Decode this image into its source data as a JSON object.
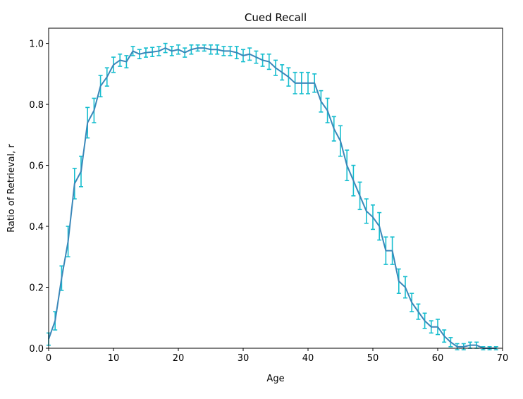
{
  "chart_data": {
    "type": "line",
    "title": "Cued Recall",
    "xlabel": "Age",
    "ylabel": "Ratio of Retrieval, r",
    "xlim": [
      0,
      70
    ],
    "ylim": [
      0,
      1.05
    ],
    "xticks": [
      0,
      10,
      20,
      30,
      40,
      50,
      60,
      70
    ],
    "yticks": [
      0.0,
      0.2,
      0.4,
      0.6,
      0.8,
      1.0
    ],
    "xtick_labels": [
      "0",
      "10",
      "20",
      "30",
      "40",
      "50",
      "60",
      "70"
    ],
    "ytick_labels": [
      "0.0",
      "0.2",
      "0.4",
      "0.6",
      "0.8",
      "1.0"
    ],
    "grid": false,
    "colors": {
      "line": "#3a87b9",
      "errorbar": "#17becf",
      "axes": "#000000"
    },
    "series": [
      {
        "x": [
          0,
          1,
          2,
          3,
          4,
          5,
          6,
          7,
          8,
          9,
          10,
          11,
          12,
          13,
          14,
          15,
          16,
          17,
          18,
          19,
          20,
          21,
          22,
          23,
          24,
          25,
          26,
          27,
          28,
          29,
          30,
          31,
          32,
          33,
          34,
          35,
          36,
          37,
          38,
          39,
          40,
          41,
          42,
          43,
          44,
          45,
          46,
          47,
          48,
          49,
          50,
          51,
          52,
          53,
          54,
          55,
          56,
          57,
          58,
          59,
          60,
          61,
          62,
          63,
          64,
          65,
          66,
          67,
          68,
          69
        ],
        "y": [
          0.03,
          0.09,
          0.23,
          0.35,
          0.54,
          0.58,
          0.74,
          0.78,
          0.86,
          0.89,
          0.93,
          0.945,
          0.94,
          0.975,
          0.965,
          0.97,
          0.972,
          0.975,
          0.985,
          0.975,
          0.98,
          0.97,
          0.98,
          0.985,
          0.985,
          0.98,
          0.98,
          0.975,
          0.975,
          0.97,
          0.96,
          0.965,
          0.955,
          0.945,
          0.94,
          0.92,
          0.905,
          0.89,
          0.87,
          0.87,
          0.87,
          0.87,
          0.81,
          0.78,
          0.72,
          0.68,
          0.6,
          0.55,
          0.5,
          0.45,
          0.43,
          0.4,
          0.32,
          0.32,
          0.22,
          0.2,
          0.15,
          0.12,
          0.09,
          0.07,
          0.07,
          0.04,
          0.02,
          0.005,
          0.005,
          0.01,
          0.01,
          0.0,
          0.0,
          0.0
        ],
        "err": [
          0.02,
          0.03,
          0.04,
          0.05,
          0.05,
          0.05,
          0.05,
          0.04,
          0.035,
          0.03,
          0.025,
          0.02,
          0.02,
          0.015,
          0.015,
          0.015,
          0.015,
          0.015,
          0.015,
          0.015,
          0.015,
          0.015,
          0.015,
          0.01,
          0.01,
          0.015,
          0.015,
          0.015,
          0.015,
          0.02,
          0.02,
          0.02,
          0.02,
          0.02,
          0.025,
          0.025,
          0.025,
          0.03,
          0.035,
          0.035,
          0.035,
          0.03,
          0.035,
          0.04,
          0.04,
          0.05,
          0.05,
          0.05,
          0.045,
          0.04,
          0.04,
          0.045,
          0.045,
          0.045,
          0.04,
          0.035,
          0.03,
          0.025,
          0.025,
          0.02,
          0.025,
          0.02,
          0.015,
          0.01,
          0.01,
          0.01,
          0.01,
          0.005,
          0.005,
          0.005
        ]
      }
    ]
  }
}
